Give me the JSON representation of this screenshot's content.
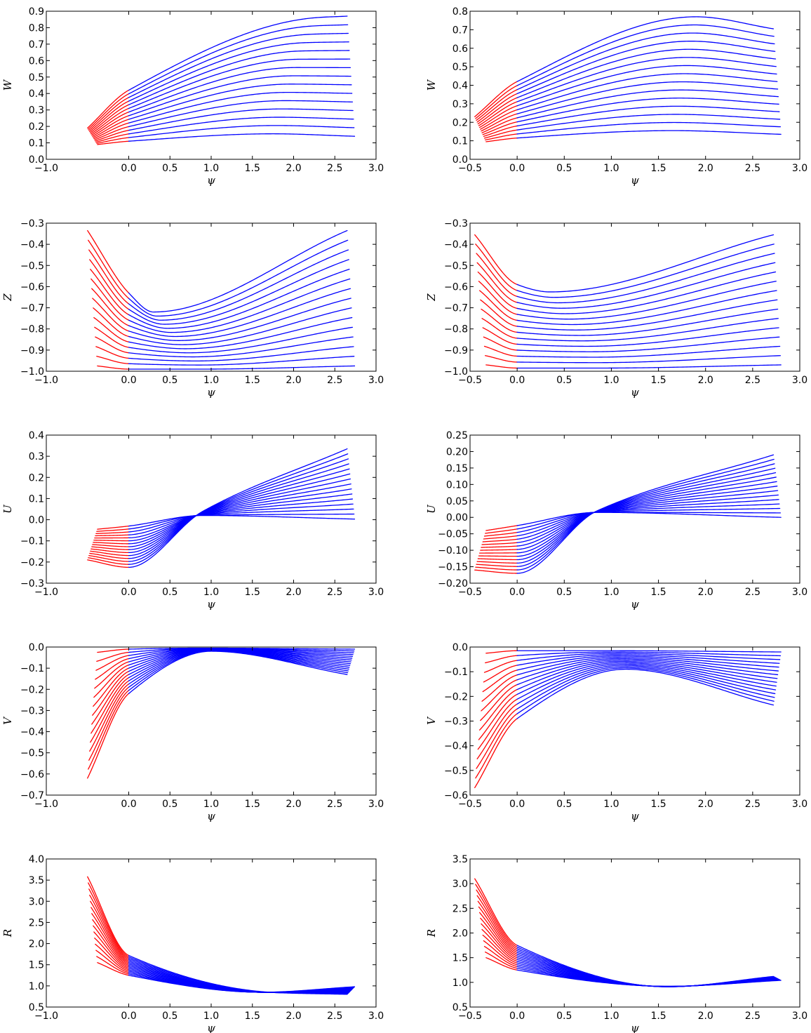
{
  "colors": {
    "red_segment": "#ff0000",
    "blue_segment": "#0000ff",
    "axes": "#000000"
  },
  "chart_data": [
    {
      "type": "line",
      "panel": "left-W",
      "xlabel": "ψ",
      "ylabel": "W",
      "xlim": [
        -1.0,
        3.0
      ],
      "ylim": [
        0.0,
        0.9
      ],
      "xticks": [
        "−1.0",
        "0.0",
        "0.5",
        "1.0",
        "1.5",
        "2.0",
        "2.5",
        "3.0"
      ],
      "xtick_values": [
        -1.0,
        0.0,
        0.5,
        1.0,
        1.5,
        2.0,
        2.5,
        3.0
      ],
      "yticks": [
        "0.0",
        "0.1",
        "0.2",
        "0.3",
        "0.4",
        "0.5",
        "0.6",
        "0.7",
        "0.8",
        "0.9"
      ],
      "ytick_values": [
        0.0,
        0.1,
        0.2,
        0.3,
        0.4,
        0.5,
        0.6,
        0.7,
        0.8,
        0.9
      ],
      "curve_family": {
        "count": 15,
        "x_start": [
          -0.5,
          -0.38
        ],
        "x_end": [
          2.65,
          2.74
        ],
        "split_x": 0.0,
        "y_start": [
          0.19,
          0.09
        ],
        "y_split": [
          0.42,
          0.11
        ],
        "y_mid": [
          0.86,
          0.155
        ],
        "x_mid": [
          2.25,
          1.75
        ],
        "y_end": [
          0.87,
          0.14
        ]
      }
    },
    {
      "type": "line",
      "panel": "right-W",
      "xlabel": "ψ",
      "ylabel": "W",
      "xlim": [
        -0.5,
        3.0
      ],
      "ylim": [
        0.0,
        0.8
      ],
      "xticks": [
        "−0.5",
        "0.0",
        "0.5",
        "1.0",
        "1.5",
        "2.0",
        "2.5",
        "3.0"
      ],
      "xtick_values": [
        -0.5,
        0.0,
        0.5,
        1.0,
        1.5,
        2.0,
        2.5,
        3.0
      ],
      "yticks": [
        "0.0",
        "0.1",
        "0.2",
        "0.3",
        "0.4",
        "0.5",
        "0.6",
        "0.7",
        "0.8"
      ],
      "ytick_values": [
        0.0,
        0.1,
        0.2,
        0.3,
        0.4,
        0.5,
        0.6,
        0.7,
        0.8
      ],
      "curve_family": {
        "count": 15,
        "x_start": [
          -0.45,
          -0.33
        ],
        "x_end": [
          2.72,
          2.8
        ],
        "split_x": 0.0,
        "y_start": [
          0.23,
          0.095
        ],
        "y_split": [
          0.42,
          0.115
        ],
        "y_mid": [
          0.77,
          0.155
        ],
        "x_mid": [
          1.9,
          1.65
        ],
        "y_end": [
          0.705,
          0.135
        ]
      }
    },
    {
      "type": "line",
      "panel": "left-Z",
      "xlabel": "ψ",
      "ylabel": "Z",
      "xlim": [
        -1.0,
        3.0
      ],
      "ylim": [
        -1.0,
        -0.3
      ],
      "xticks": [
        "−1.0",
        "0.0",
        "0.5",
        "1.0",
        "1.5",
        "2.0",
        "2.5",
        "3.0"
      ],
      "xtick_values": [
        -1.0,
        0.0,
        0.5,
        1.0,
        1.5,
        2.0,
        2.5,
        3.0
      ],
      "yticks": [
        "−1.0",
        "−0.9",
        "−0.8",
        "−0.7",
        "−0.6",
        "−0.5",
        "−0.4",
        "−0.3"
      ],
      "ytick_values": [
        -1.0,
        -0.9,
        -0.8,
        -0.7,
        -0.6,
        -0.5,
        -0.4,
        -0.3
      ],
      "curve_family": {
        "count": 15,
        "x_start": [
          -0.5,
          -0.38
        ],
        "x_end": [
          2.65,
          2.74
        ],
        "split_x": 0.0,
        "y_start": [
          -0.335,
          -0.975
        ],
        "y_split": [
          -0.63,
          -0.99
        ],
        "y_mid": [
          -0.72,
          -0.99
        ],
        "x_mid": [
          0.3,
          0.9
        ],
        "y_end": [
          -0.335,
          -0.975
        ]
      }
    },
    {
      "type": "line",
      "panel": "right-Z",
      "xlabel": "ψ",
      "ylabel": "Z",
      "xlim": [
        -0.5,
        3.0
      ],
      "ylim": [
        -1.0,
        -0.3
      ],
      "xticks": [
        "−0.5",
        "0.0",
        "0.5",
        "1.0",
        "1.5",
        "2.0",
        "2.5",
        "3.0"
      ],
      "xtick_values": [
        -0.5,
        0.0,
        0.5,
        1.0,
        1.5,
        2.0,
        2.5,
        3.0
      ],
      "yticks": [
        "−1.0",
        "−0.9",
        "−0.8",
        "−0.7",
        "−0.6",
        "−0.5",
        "−0.4",
        "−0.3"
      ],
      "ytick_values": [
        -1.0,
        -0.9,
        -0.8,
        -0.7,
        -0.6,
        -0.5,
        -0.4,
        -0.3
      ],
      "curve_family": {
        "count": 15,
        "x_start": [
          -0.45,
          -0.33
        ],
        "x_end": [
          2.72,
          2.8
        ],
        "split_x": 0.0,
        "y_start": [
          -0.355,
          -0.97
        ],
        "y_split": [
          -0.59,
          -0.985
        ],
        "y_mid": [
          -0.625,
          -0.985
        ],
        "x_mid": [
          0.35,
          0.9
        ],
        "y_end": [
          -0.355,
          -0.97
        ]
      }
    },
    {
      "type": "line",
      "panel": "left-U",
      "xlabel": "ψ",
      "ylabel": "U",
      "xlim": [
        -1.0,
        3.0
      ],
      "ylim": [
        -0.3,
        0.4
      ],
      "xticks": [
        "−1.0",
        "0.0",
        "0.5",
        "1.0",
        "1.5",
        "2.0",
        "2.5",
        "3.0"
      ],
      "xtick_values": [
        -1.0,
        0.0,
        0.5,
        1.0,
        1.5,
        2.0,
        2.5,
        3.0
      ],
      "yticks": [
        "−0.3",
        "−0.2",
        "−0.1",
        "0.0",
        "0.1",
        "0.2",
        "0.3",
        "0.4"
      ],
      "ytick_values": [
        -0.3,
        -0.2,
        -0.1,
        0.0,
        0.1,
        0.2,
        0.3,
        0.4
      ],
      "curve_family": {
        "count": 15,
        "x_start": [
          -0.5,
          -0.38
        ],
        "x_end": [
          2.65,
          2.74
        ],
        "split_x": 0.0,
        "y_start": [
          -0.19,
          -0.045
        ],
        "y_split": [
          -0.225,
          -0.03
        ],
        "y_mid": [
          0.04,
          0.02
        ],
        "x_mid": [
          0.9,
          0.9
        ],
        "y_end": [
          0.335,
          0.003
        ]
      }
    },
    {
      "type": "line",
      "panel": "right-U",
      "xlabel": "ψ",
      "ylabel": "U",
      "xlim": [
        -0.5,
        3.0
      ],
      "ylim": [
        -0.2,
        0.25
      ],
      "xticks": [
        "−0.5",
        "0.0",
        "0.5",
        "1.0",
        "1.5",
        "2.0",
        "2.5",
        "3.0"
      ],
      "xtick_values": [
        -0.5,
        0.0,
        0.5,
        1.0,
        1.5,
        2.0,
        2.5,
        3.0
      ],
      "yticks": [
        "−0.20",
        "−0.15",
        "−0.10",
        "−0.05",
        "0.00",
        "0.05",
        "0.10",
        "0.15",
        "0.20",
        "0.25"
      ],
      "ytick_values": [
        -0.2,
        -0.15,
        -0.1,
        -0.05,
        0.0,
        0.05,
        0.1,
        0.15,
        0.2,
        0.25
      ],
      "curve_family": {
        "count": 15,
        "x_start": [
          -0.45,
          -0.33
        ],
        "x_end": [
          2.72,
          2.8
        ],
        "split_x": 0.0,
        "y_start": [
          -0.16,
          -0.04
        ],
        "y_split": [
          -0.17,
          -0.025
        ],
        "y_mid": [
          0.02,
          0.015
        ],
        "x_mid": [
          0.85,
          0.85
        ],
        "y_end": [
          0.19,
          0.0
        ]
      }
    },
    {
      "type": "line",
      "panel": "left-V",
      "xlabel": "ψ",
      "ylabel": "V",
      "xlim": [
        -1.0,
        3.0
      ],
      "ylim": [
        -0.7,
        0.0
      ],
      "xticks": [
        "−1.0",
        "0.0",
        "0.5",
        "1.0",
        "1.5",
        "2.0",
        "2.5",
        "3.0"
      ],
      "xtick_values": [
        -1.0,
        0.0,
        0.5,
        1.0,
        1.5,
        2.0,
        2.5,
        3.0
      ],
      "yticks": [
        "−0.7",
        "−0.6",
        "−0.5",
        "−0.4",
        "−0.3",
        "−0.2",
        "−0.1",
        "0.0"
      ],
      "ytick_values": [
        -0.7,
        -0.6,
        -0.5,
        -0.4,
        -0.3,
        -0.2,
        -0.1,
        0.0
      ],
      "curve_family": {
        "count": 15,
        "x_start": [
          -0.5,
          -0.38
        ],
        "x_end": [
          2.65,
          2.74
        ],
        "split_x": 0.0,
        "y_start": [
          -0.62,
          -0.025
        ],
        "y_split": [
          -0.22,
          -0.01
        ],
        "y_mid": [
          -0.02,
          -0.005
        ],
        "x_mid": [
          1.0,
          0.9
        ],
        "y_end": [
          -0.13,
          -0.01
        ]
      }
    },
    {
      "type": "line",
      "panel": "right-V",
      "xlabel": "ψ",
      "ylabel": "V",
      "xlim": [
        -0.5,
        3.0
      ],
      "ylim": [
        -0.6,
        0.0
      ],
      "xticks": [
        "−0.5",
        "0.0",
        "0.5",
        "1.0",
        "1.5",
        "2.0",
        "2.5",
        "3.0"
      ],
      "xtick_values": [
        -0.5,
        0.0,
        0.5,
        1.0,
        1.5,
        2.0,
        2.5,
        3.0
      ],
      "yticks": [
        "−0.6",
        "−0.5",
        "−0.4",
        "−0.3",
        "−0.2",
        "−0.1",
        "0.0"
      ],
      "ytick_values": [
        -0.6,
        -0.5,
        -0.4,
        -0.3,
        -0.2,
        -0.1,
        0.0
      ],
      "curve_family": {
        "count": 15,
        "x_start": [
          -0.45,
          -0.33
        ],
        "x_end": [
          2.72,
          2.8
        ],
        "split_x": 0.0,
        "y_start": [
          -0.57,
          -0.025
        ],
        "y_split": [
          -0.29,
          -0.015
        ],
        "y_mid": [
          -0.09,
          -0.015
        ],
        "x_mid": [
          1.15,
          1.0
        ],
        "y_end": [
          -0.235,
          -0.02
        ]
      }
    },
    {
      "type": "line",
      "panel": "left-R",
      "xlabel": "ψ",
      "ylabel": "R",
      "xlim": [
        -1.0,
        3.0
      ],
      "ylim": [
        0.5,
        4.0
      ],
      "xticks": [
        "−1.0",
        "0.0",
        "0.5",
        "1.0",
        "1.5",
        "2.0",
        "2.5",
        "3.0"
      ],
      "xtick_values": [
        -1.0,
        0.0,
        0.5,
        1.0,
        1.5,
        2.0,
        2.5,
        3.0
      ],
      "yticks": [
        "0.5",
        "1.0",
        "1.5",
        "2.0",
        "2.5",
        "3.0",
        "3.5",
        "4.0"
      ],
      "ytick_values": [
        0.5,
        1.0,
        1.5,
        2.0,
        2.5,
        3.0,
        3.5,
        4.0
      ],
      "curve_family": {
        "count": 15,
        "x_start": [
          -0.5,
          -0.38
        ],
        "x_end": [
          2.65,
          2.74
        ],
        "split_x": 0.0,
        "y_start": [
          3.58,
          1.55
        ],
        "y_split": [
          1.72,
          1.25
        ],
        "y_mid": [
          0.84,
          0.85
        ],
        "x_mid": [
          1.8,
          1.6
        ],
        "y_end": [
          0.8,
          0.98
        ]
      }
    },
    {
      "type": "line",
      "panel": "right-R",
      "xlabel": "ψ",
      "ylabel": "R",
      "xlim": [
        -0.5,
        3.0
      ],
      "ylim": [
        0.5,
        3.5
      ],
      "xticks": [
        "−0.5",
        "0.0",
        "0.5",
        "1.0",
        "1.5",
        "2.0",
        "2.5",
        "3.0"
      ],
      "xtick_values": [
        -0.5,
        0.0,
        0.5,
        1.0,
        1.5,
        2.0,
        2.5,
        3.0
      ],
      "yticks": [
        "0.5",
        "1.0",
        "1.5",
        "2.0",
        "2.5",
        "3.0",
        "3.5"
      ],
      "ytick_values": [
        0.5,
        1.0,
        1.5,
        2.0,
        2.5,
        3.0,
        3.5
      ],
      "curve_family": {
        "count": 15,
        "x_start": [
          -0.45,
          -0.33
        ],
        "x_end": [
          2.72,
          2.8
        ],
        "split_x": 0.0,
        "y_start": [
          3.1,
          1.5
        ],
        "y_split": [
          1.75,
          1.25
        ],
        "y_mid": [
          0.91,
          0.92
        ],
        "x_mid": [
          1.6,
          1.6
        ],
        "y_end": [
          1.12,
          1.04
        ]
      }
    }
  ]
}
